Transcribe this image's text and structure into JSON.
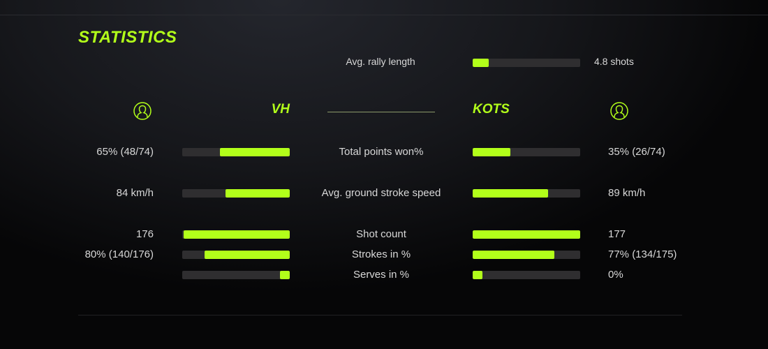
{
  "title": "STATISTICS",
  "accent_color": "#b2ff1a",
  "rally": {
    "label": "Avg. rally length",
    "value": "4.8 shots",
    "fill": 0.15
  },
  "players": {
    "left": {
      "name": "VH",
      "icon": "user-circle-icon"
    },
    "right": {
      "name": "KOTS",
      "icon": "user-circle-icon"
    }
  },
  "stats": [
    {
      "label": "Total points won%",
      "left": "65% (48/74)",
      "right": "35% (26/74)",
      "left_fill": 0.65,
      "right_fill": 0.35
    },
    {
      "label": "Avg. ground stroke speed",
      "left": "84 km/h",
      "right": "89 km/h",
      "left_fill": 0.6,
      "right_fill": 0.7
    },
    {
      "label": "Shot count",
      "left": "176",
      "right": "177",
      "left_fill": 0.99,
      "right_fill": 1.0
    },
    {
      "label": "Strokes in %",
      "left": "80% (140/176)",
      "right": "77% (134/175)",
      "left_fill": 0.79,
      "right_fill": 0.76
    },
    {
      "label": "Serves in %",
      "left": "",
      "right": "0%",
      "left_fill": 0.09,
      "right_fill": 0.09
    }
  ]
}
